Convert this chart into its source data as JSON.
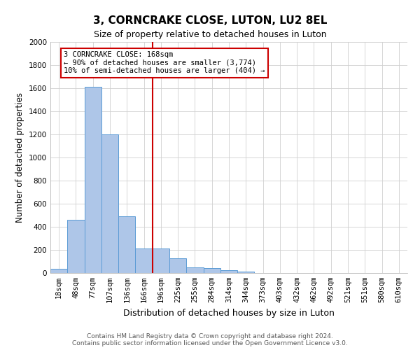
{
  "title": "3, CORNCRAKE CLOSE, LUTON, LU2 8EL",
  "subtitle": "Size of property relative to detached houses in Luton",
  "xlabel": "Distribution of detached houses by size in Luton",
  "ylabel": "Number of detached properties",
  "categories": [
    "18sqm",
    "48sqm",
    "77sqm",
    "107sqm",
    "136sqm",
    "166sqm",
    "196sqm",
    "225sqm",
    "255sqm",
    "284sqm",
    "314sqm",
    "344sqm",
    "373sqm",
    "403sqm",
    "432sqm",
    "462sqm",
    "492sqm",
    "521sqm",
    "551sqm",
    "580sqm",
    "610sqm"
  ],
  "values": [
    38,
    460,
    1610,
    1200,
    490,
    210,
    210,
    130,
    50,
    40,
    25,
    15,
    0,
    0,
    0,
    0,
    0,
    0,
    0,
    0,
    0
  ],
  "bar_color": "#aec6e8",
  "bar_edge_color": "#5b9bd5",
  "vline_x": 5.5,
  "annotation_line1": "3 CORNCRAKE CLOSE: 168sqm",
  "annotation_line2": "← 90% of detached houses are smaller (3,774)",
  "annotation_line3": "10% of semi-detached houses are larger (404) →",
  "annotation_box_color": "#cc0000",
  "ylim": [
    0,
    2000
  ],
  "yticks": [
    0,
    200,
    400,
    600,
    800,
    1000,
    1200,
    1400,
    1600,
    1800,
    2000
  ],
  "footer_line1": "Contains HM Land Registry data © Crown copyright and database right 2024.",
  "footer_line2": "Contains public sector information licensed under the Open Government Licence v3.0.",
  "background_color": "#ffffff",
  "grid_color": "#d0d0d0",
  "title_fontsize": 11,
  "subtitle_fontsize": 9,
  "ylabel_fontsize": 8.5,
  "xlabel_fontsize": 9,
  "tick_fontsize": 7.5,
  "footer_fontsize": 6.5,
  "annotation_fontsize": 7.5
}
